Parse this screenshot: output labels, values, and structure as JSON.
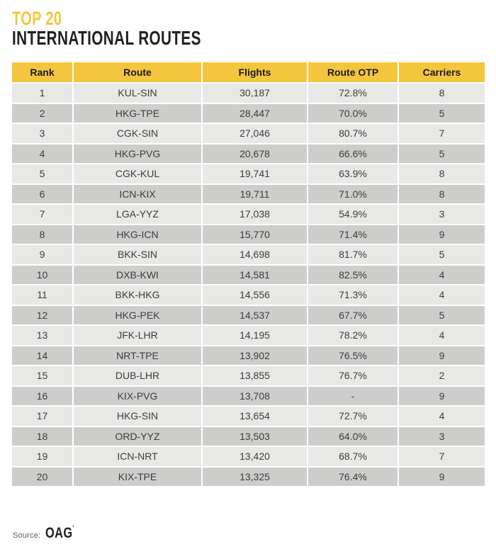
{
  "title": {
    "line1": "TOP 20",
    "line2": "INTERNATIONAL ROUTES"
  },
  "source": {
    "label": "Source:",
    "name": "OAG",
    "mark": "'"
  },
  "colors": {
    "accent_yellow": "#F4C63D",
    "row_light": "#E8E8E6",
    "row_dark": "#CDCDCB",
    "cell_text": "#3C3C3C",
    "title_black": "#231F20"
  },
  "chart_data": {
    "type": "table",
    "title": "TOP 20 INTERNATIONAL ROUTES",
    "columns": [
      "Rank",
      "Route",
      "Flights",
      "Route OTP",
      "Carriers"
    ],
    "rows": [
      {
        "rank": "1",
        "route": "KUL-SIN",
        "flights": "30,187",
        "otp": "72.8%",
        "carriers": "8"
      },
      {
        "rank": "2",
        "route": "HKG-TPE",
        "flights": "28,447",
        "otp": "70.0%",
        "carriers": "5"
      },
      {
        "rank": "3",
        "route": "CGK-SIN",
        "flights": "27,046",
        "otp": "80.7%",
        "carriers": "7"
      },
      {
        "rank": "4",
        "route": "HKG-PVG",
        "flights": "20,678",
        "otp": "66.6%",
        "carriers": "5"
      },
      {
        "rank": "5",
        "route": "CGK-KUL",
        "flights": "19,741",
        "otp": "63.9%",
        "carriers": "8"
      },
      {
        "rank": "6",
        "route": "ICN-KIX",
        "flights": "19,711",
        "otp": "71.0%",
        "carriers": "8"
      },
      {
        "rank": "7",
        "route": "LGA-YYZ",
        "flights": "17,038",
        "otp": "54.9%",
        "carriers": "3"
      },
      {
        "rank": "8",
        "route": "HKG-ICN",
        "flights": "15,770",
        "otp": "71.4%",
        "carriers": "9"
      },
      {
        "rank": "9",
        "route": "BKK-SIN",
        "flights": "14,698",
        "otp": "81.7%",
        "carriers": "5"
      },
      {
        "rank": "10",
        "route": "DXB-KWI",
        "flights": "14,581",
        "otp": "82.5%",
        "carriers": "4"
      },
      {
        "rank": "11",
        "route": "BKK-HKG",
        "flights": "14,556",
        "otp": "71.3%",
        "carriers": "4"
      },
      {
        "rank": "12",
        "route": "HKG-PEK",
        "flights": "14,537",
        "otp": "67.7%",
        "carriers": "5"
      },
      {
        "rank": "13",
        "route": "JFK-LHR",
        "flights": "14,195",
        "otp": "78.2%",
        "carriers": "4"
      },
      {
        "rank": "14",
        "route": "NRT-TPE",
        "flights": "13,902",
        "otp": "76.5%",
        "carriers": "9"
      },
      {
        "rank": "15",
        "route": "DUB-LHR",
        "flights": "13,855",
        "otp": "76.7%",
        "carriers": "2"
      },
      {
        "rank": "16",
        "route": "KIX-PVG",
        "flights": "13,708",
        "otp": "-",
        "carriers": "9"
      },
      {
        "rank": "17",
        "route": "HKG-SIN",
        "flights": "13,654",
        "otp": "72.7%",
        "carriers": "4"
      },
      {
        "rank": "18",
        "route": "ORD-YYZ",
        "flights": "13,503",
        "otp": "64.0%",
        "carriers": "3"
      },
      {
        "rank": "19",
        "route": "ICN-NRT",
        "flights": "13,420",
        "otp": "68.7%",
        "carriers": "7"
      },
      {
        "rank": "20",
        "route": "KIX-TPE",
        "flights": "13,325",
        "otp": "76.4%",
        "carriers": "9"
      }
    ]
  }
}
